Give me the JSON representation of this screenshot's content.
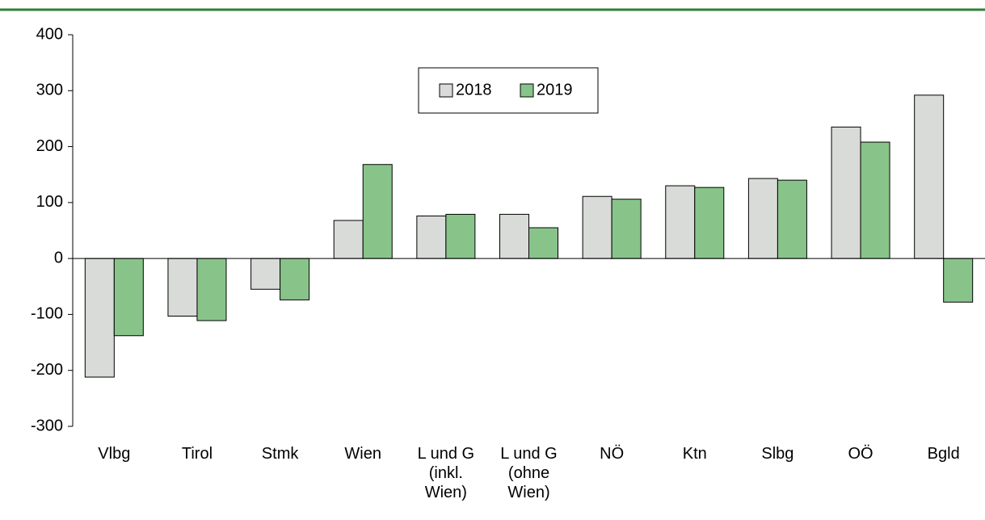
{
  "chart_data": {
    "type": "bar",
    "categories": [
      "Vlbg",
      "Tirol",
      "Stmk",
      "Wien",
      "L und G (inkl. Wien)",
      "L und G (ohne Wien)",
      "NÖ",
      "Ktn",
      "Slbg",
      "OÖ",
      "Bgld"
    ],
    "series": [
      {
        "name": "2018",
        "color": "#d9dbd9",
        "values": [
          -212,
          -103,
          -55,
          68,
          76,
          79,
          111,
          130,
          143,
          235,
          292
        ]
      },
      {
        "name": "2019",
        "color": "#88c48a",
        "values": [
          -138,
          -111,
          -74,
          168,
          79,
          55,
          106,
          127,
          140,
          208,
          -78
        ]
      }
    ],
    "ylim": [
      -300,
      400
    ],
    "yticks": [
      -300,
      -200,
      -100,
      0,
      100,
      200,
      300,
      400
    ],
    "grid": false,
    "legend": "top"
  }
}
